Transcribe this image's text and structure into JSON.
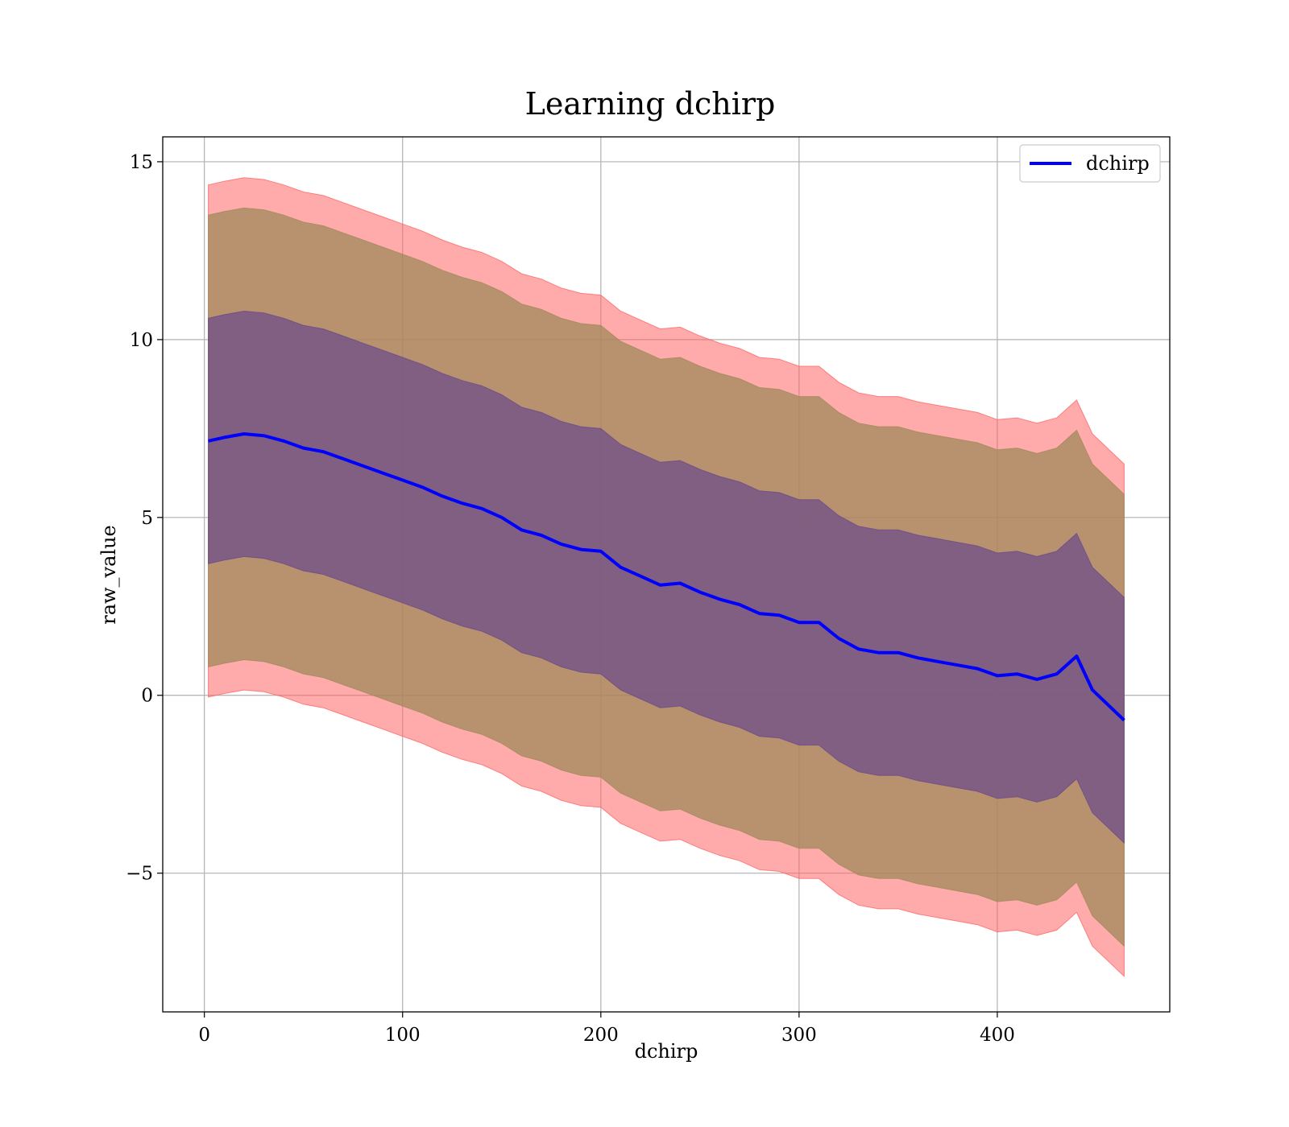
{
  "chart_data": {
    "type": "line",
    "title": "Learning dchirp",
    "xlabel": "dchirp",
    "ylabel": "raw_value",
    "xlim": [
      -21,
      487
    ],
    "ylim": [
      -8.9,
      15.7
    ],
    "xticks": [
      0,
      100,
      200,
      300,
      400
    ],
    "xtick_labels": [
      "0",
      "100",
      "200",
      "300",
      "400"
    ],
    "yticks": [
      -5,
      0,
      5,
      10,
      15
    ],
    "ytick_labels": [
      "−5",
      "0",
      "5",
      "10",
      "15"
    ],
    "grid": true,
    "legend": {
      "placement": "top-right",
      "entries": [
        "dchirp"
      ]
    },
    "colors": {
      "mean_line": "#0000ff",
      "band_outer": "#ff6666",
      "band_middle": "#a08a5a",
      "band_inner": "#6a4a8a"
    },
    "series": [
      {
        "name": "dchirp",
        "x": [
          2,
          10,
          20,
          30,
          40,
          50,
          60,
          70,
          80,
          90,
          100,
          110,
          120,
          130,
          140,
          150,
          160,
          170,
          180,
          190,
          200,
          210,
          220,
          230,
          240,
          250,
          260,
          270,
          280,
          290,
          300,
          310,
          320,
          330,
          340,
          350,
          360,
          370,
          380,
          390,
          400,
          410,
          420,
          430,
          440,
          448,
          464
        ],
        "y": [
          7.15,
          7.25,
          7.35,
          7.3,
          7.15,
          6.95,
          6.85,
          6.65,
          6.45,
          6.25,
          6.05,
          5.85,
          5.6,
          5.4,
          5.25,
          5.0,
          4.65,
          4.5,
          4.25,
          4.1,
          4.05,
          3.6,
          3.35,
          3.1,
          3.15,
          2.9,
          2.7,
          2.55,
          2.3,
          2.25,
          2.05,
          2.05,
          1.6,
          1.3,
          1.2,
          1.2,
          1.05,
          0.95,
          0.85,
          0.75,
          0.55,
          0.6,
          0.45,
          0.6,
          1.1,
          0.15,
          -0.7
        ]
      }
    ],
    "bands": [
      {
        "label": "outer",
        "lower_offset": -7.2,
        "upper_offset": 7.2
      },
      {
        "label": "middle",
        "lower_offset": -6.35,
        "upper_offset": 6.35
      },
      {
        "label": "inner",
        "lower_offset": -3.45,
        "upper_offset": 3.45
      }
    ]
  }
}
